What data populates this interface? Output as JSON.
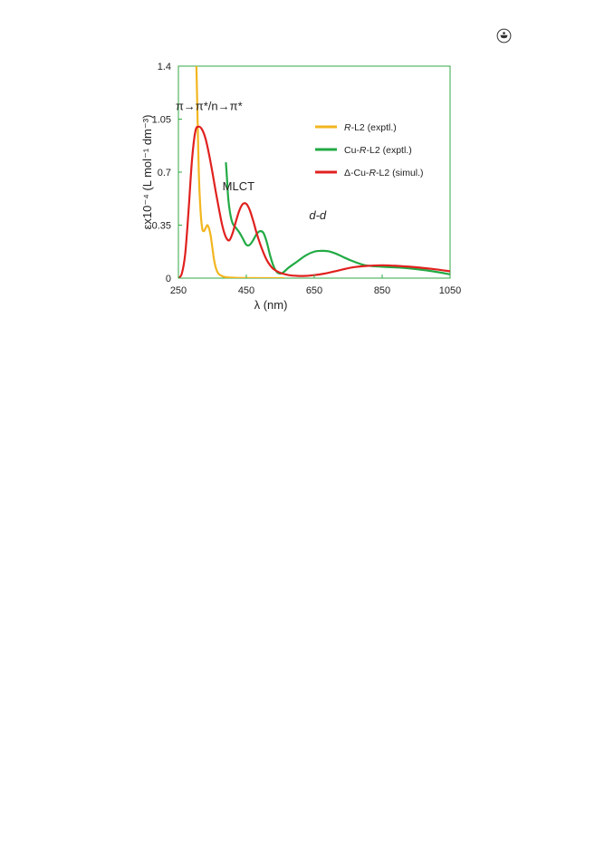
{
  "logo_icon": "circled-seal-logo",
  "chart_data": {
    "type": "line",
    "xlabel": "λ (nm)",
    "ylabel": "εx10⁻⁴ (L mol⁻¹ dm⁻³)",
    "xlim": [
      250,
      1050
    ],
    "ylim": [
      0,
      1.4
    ],
    "x_ticks": [
      "250",
      "450",
      "650",
      "850",
      "1050"
    ],
    "x_tick_values": [
      250,
      450,
      650,
      850,
      1050
    ],
    "y_ticks": [
      "0",
      "0.35",
      "0.7",
      "1.05",
      "1.4"
    ],
    "y_tick_values": [
      0,
      0.35,
      0.7,
      1.05,
      1.4
    ],
    "grid": false,
    "legend_position": "upper-right",
    "frame_color": "#33aa44",
    "annotations": [
      {
        "text": "π→π*/n→π*",
        "x": 340,
        "y": 1.11
      },
      {
        "text": "MLCT",
        "x": 427,
        "y": 0.58
      },
      {
        "text": "d-d",
        "x": 660,
        "y": 0.39
      }
    ],
    "series": [
      {
        "name": "R-L2 (exptl.)",
        "legend": {
          "italic": "R",
          "rest": "-L2 (exptl.)",
          "prefix": ""
        },
        "color": "#f2b61f",
        "x": [
          303,
          306,
          310,
          315,
          320,
          325,
          330,
          335,
          340,
          345,
          350,
          355,
          360,
          365,
          370,
          380,
          390,
          400,
          420,
          450,
          500,
          560
        ],
        "y": [
          1.4,
          1.1,
          0.7,
          0.45,
          0.33,
          0.31,
          0.33,
          0.35,
          0.33,
          0.28,
          0.2,
          0.12,
          0.07,
          0.04,
          0.025,
          0.012,
          0.006,
          0.004,
          0.002,
          0.001,
          0.0,
          0.0
        ]
      },
      {
        "name": "Cu-R-L2 (exptl.)",
        "legend": {
          "prefix": "Cu-",
          "italic": "R",
          "rest": "-L2 (exptl.)"
        },
        "color": "#22aa44",
        "x": [
          390,
          393,
          397,
          403,
          410,
          420,
          430,
          440,
          450,
          460,
          470,
          480,
          490,
          500,
          510,
          520,
          530,
          540,
          550,
          560,
          575,
          600,
          625,
          650,
          670,
          690,
          710,
          730,
          760,
          800,
          850,
          900,
          950,
          1000,
          1050
        ],
        "y": [
          0.76,
          0.66,
          0.52,
          0.42,
          0.36,
          0.33,
          0.3,
          0.26,
          0.22,
          0.22,
          0.25,
          0.29,
          0.31,
          0.3,
          0.24,
          0.15,
          0.08,
          0.04,
          0.03,
          0.04,
          0.07,
          0.11,
          0.15,
          0.175,
          0.18,
          0.178,
          0.165,
          0.145,
          0.115,
          0.085,
          0.075,
          0.07,
          0.06,
          0.045,
          0.025
        ]
      },
      {
        "name": "Δ-Cu-R-L2 (simul.)",
        "legend": {
          "prefix": "Δ-Cu-",
          "italic": "R",
          "rest": "-L2 (simul.)"
        },
        "color": "#e0211f",
        "x": [
          250,
          260,
          270,
          280,
          290,
          300,
          310,
          320,
          330,
          340,
          350,
          360,
          370,
          380,
          390,
          400,
          410,
          420,
          430,
          440,
          450,
          460,
          470,
          480,
          490,
          500,
          510,
          520,
          530,
          550,
          575,
          600,
          625,
          650,
          680,
          720,
          760,
          800,
          850,
          900,
          950,
          1000,
          1050
        ],
        "y": [
          0.0,
          0.03,
          0.16,
          0.45,
          0.78,
          0.97,
          1.0,
          0.98,
          0.92,
          0.82,
          0.7,
          0.57,
          0.45,
          0.34,
          0.27,
          0.25,
          0.3,
          0.38,
          0.45,
          0.49,
          0.49,
          0.45,
          0.38,
          0.3,
          0.23,
          0.17,
          0.12,
          0.085,
          0.06,
          0.035,
          0.02,
          0.015,
          0.015,
          0.02,
          0.03,
          0.05,
          0.07,
          0.08,
          0.085,
          0.08,
          0.072,
          0.06,
          0.045
        ]
      }
    ]
  }
}
